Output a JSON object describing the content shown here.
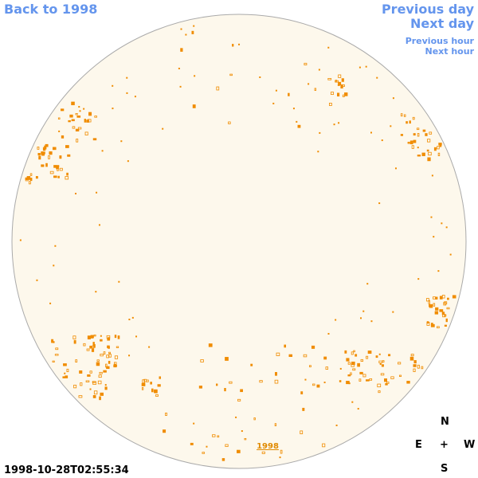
{
  "nav": {
    "back": "Back to 1998",
    "previous_day": "Previous day",
    "next_day": "Next day",
    "previous_hour": "Previous hour",
    "next_hour": "Next hour"
  },
  "disk_label": "1998",
  "timestamp": "1998-10-28T02:55:34",
  "compass": {
    "north": "N",
    "east": "E",
    "center": "+",
    "west": "W",
    "south": "S"
  }
}
